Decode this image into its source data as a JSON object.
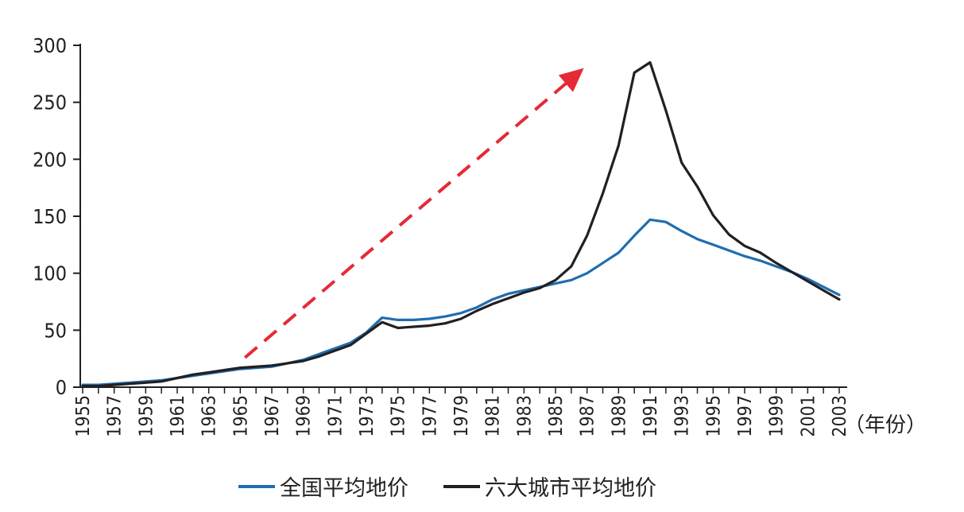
{
  "chart_data": {
    "type": "line",
    "unit_label": "（年份）",
    "x": [
      1955,
      1956,
      1957,
      1958,
      1959,
      1960,
      1961,
      1962,
      1963,
      1964,
      1965,
      1966,
      1967,
      1968,
      1969,
      1970,
      1971,
      1972,
      1973,
      1974,
      1975,
      1976,
      1977,
      1978,
      1979,
      1980,
      1981,
      1982,
      1983,
      1984,
      1985,
      1986,
      1987,
      1988,
      1989,
      1990,
      1991,
      1992,
      1993,
      1994,
      1995,
      1996,
      1997,
      1998,
      1999,
      2000,
      2001,
      2002,
      2003
    ],
    "x_tick_labels": [
      "1955",
      "1957",
      "1959",
      "1961",
      "1963",
      "1965",
      "1967",
      "1969",
      "1971",
      "1973",
      "1975",
      "1977",
      "1979",
      "1981",
      "1983",
      "1985",
      "1987",
      "1989",
      "1991",
      "1993",
      "1995",
      "1997",
      "1999",
      "2001",
      "2003"
    ],
    "ylim": [
      0,
      300
    ],
    "y_ticks": [
      0,
      50,
      100,
      150,
      200,
      250,
      300
    ],
    "y_tick_labels": [
      "0",
      "50",
      "100",
      "150",
      "200",
      "250",
      "300"
    ],
    "series": [
      {
        "name": "全国平均地价",
        "color": "#1f6eb0",
        "values": [
          2,
          2,
          3,
          4,
          5,
          6,
          8,
          10,
          12,
          14,
          16,
          17,
          18,
          21,
          24,
          29,
          34,
          39,
          48,
          61,
          59,
          59,
          60,
          62,
          65,
          70,
          77,
          82,
          85,
          88,
          91,
          94,
          100,
          109,
          118,
          133,
          147,
          145,
          137,
          130,
          125,
          120,
          115,
          111,
          106,
          101,
          95,
          88,
          81
        ]
      },
      {
        "name": "六大城市平均地价",
        "color": "#231f20",
        "values": [
          1,
          1,
          2,
          3,
          4,
          5,
          8,
          11,
          13,
          15,
          17,
          18,
          19,
          21,
          23,
          27,
          32,
          37,
          47,
          57,
          52,
          53,
          54,
          56,
          60,
          67,
          73,
          78,
          83,
          87,
          94,
          106,
          133,
          170,
          212,
          276,
          285,
          243,
          197,
          176,
          151,
          134,
          124,
          118,
          109,
          101,
          93,
          85,
          77
        ]
      }
    ],
    "annotation": {
      "type": "dashed-arrow",
      "color": "#e52a36",
      "from": [
        1965.3,
        26
      ],
      "to": [
        1986.8,
        280
      ]
    }
  }
}
